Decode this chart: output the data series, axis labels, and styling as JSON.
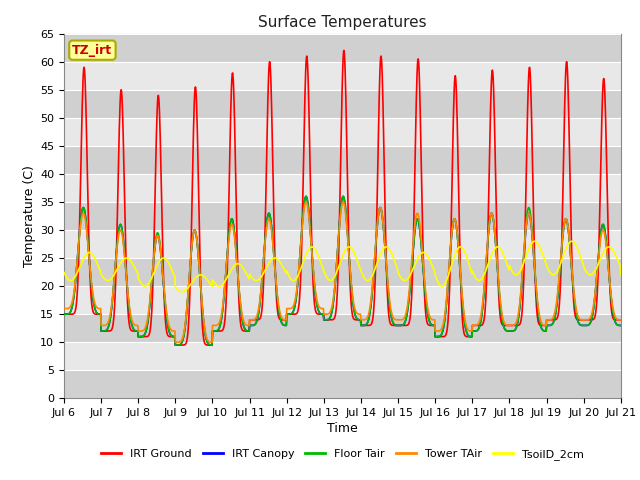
{
  "title": "Surface Temperatures",
  "xlabel": "Time",
  "ylabel": "Temperature (C)",
  "ylim": [
    0,
    65
  ],
  "yticks": [
    0,
    5,
    10,
    15,
    20,
    25,
    30,
    35,
    40,
    45,
    50,
    55,
    60,
    65
  ],
  "x_start_day": 6,
  "x_end_day": 21,
  "x_tick_days": [
    6,
    7,
    8,
    9,
    10,
    11,
    12,
    13,
    14,
    15,
    16,
    17,
    18,
    19,
    20,
    21
  ],
  "x_tick_labels": [
    "Jul 6",
    "Jul 7",
    "Jul 8",
    "Jul 9",
    "Jul 10",
    "Jul 11",
    "Jul 12",
    "Jul 13",
    "Jul 14",
    "Jul 15",
    "Jul 16",
    "Jul 17",
    "Jul 18",
    "Jul 19",
    "Jul 20",
    "Jul 21"
  ],
  "series": [
    {
      "name": "IRT Ground",
      "color": "#ff0000",
      "lw": 1.2
    },
    {
      "name": "IRT Canopy",
      "color": "#0000ff",
      "lw": 1.2
    },
    {
      "name": "Floor Tair",
      "color": "#00bb00",
      "lw": 1.2
    },
    {
      "name": "Tower TAir",
      "color": "#ff8800",
      "lw": 1.2
    },
    {
      "name": "TsoilD_2cm",
      "color": "#ffff00",
      "lw": 1.2
    }
  ],
  "tz_label": "TZ_irt",
  "tz_label_color": "#cc0000",
  "tz_box_facecolor": "#ffff99",
  "tz_box_edgecolor": "#aaaa00",
  "background_color": "#ffffff",
  "plot_bg_color": "#e8e8e8",
  "stripe_color": "#d0d0d0",
  "grid_color": "#ffffff",
  "title_fontsize": 11,
  "axis_label_fontsize": 9,
  "tick_fontsize": 8,
  "legend_fontsize": 8,
  "irt_ground_peaks": [
    59,
    55,
    54,
    55.5,
    58,
    60,
    61,
    62,
    61,
    60.5,
    57.5,
    58.5,
    59,
    60,
    57
  ],
  "irt_ground_mins": [
    15,
    12,
    11,
    9.5,
    12,
    14,
    15,
    14,
    13,
    13,
    11,
    13,
    13,
    14,
    14
  ],
  "canopy_peaks": [
    34,
    31,
    29,
    30,
    32,
    33,
    36,
    36,
    34,
    32,
    32,
    33,
    33,
    32,
    31
  ],
  "canopy_mins": [
    15,
    12,
    11,
    9.5,
    12,
    13,
    15,
    14,
    13,
    13,
    11,
    12,
    12,
    13,
    13
  ],
  "floor_peaks": [
    34,
    31,
    29.5,
    30,
    32,
    33,
    36,
    36,
    34,
    32,
    32,
    33,
    34,
    32,
    31
  ],
  "floor_mins": [
    15,
    12,
    11,
    9.5,
    12,
    13,
    15,
    14,
    13,
    13,
    11,
    12,
    12,
    13,
    13
  ],
  "tower_peaks": [
    33,
    30,
    29,
    30,
    31,
    32,
    35,
    35,
    34,
    33,
    32,
    33,
    33,
    32,
    30
  ],
  "tower_mins": [
    16,
    13,
    12,
    10,
    13,
    14,
    16,
    15,
    14,
    14,
    12,
    13,
    13,
    14,
    14
  ],
  "soil_peaks": [
    26,
    25,
    25,
    22,
    24,
    25,
    27,
    27,
    27,
    26,
    27,
    27,
    28,
    28,
    27
  ],
  "soil_mins": [
    21,
    21,
    20,
    19,
    20,
    21,
    21,
    21,
    21,
    21,
    20,
    21,
    22,
    22,
    22
  ]
}
